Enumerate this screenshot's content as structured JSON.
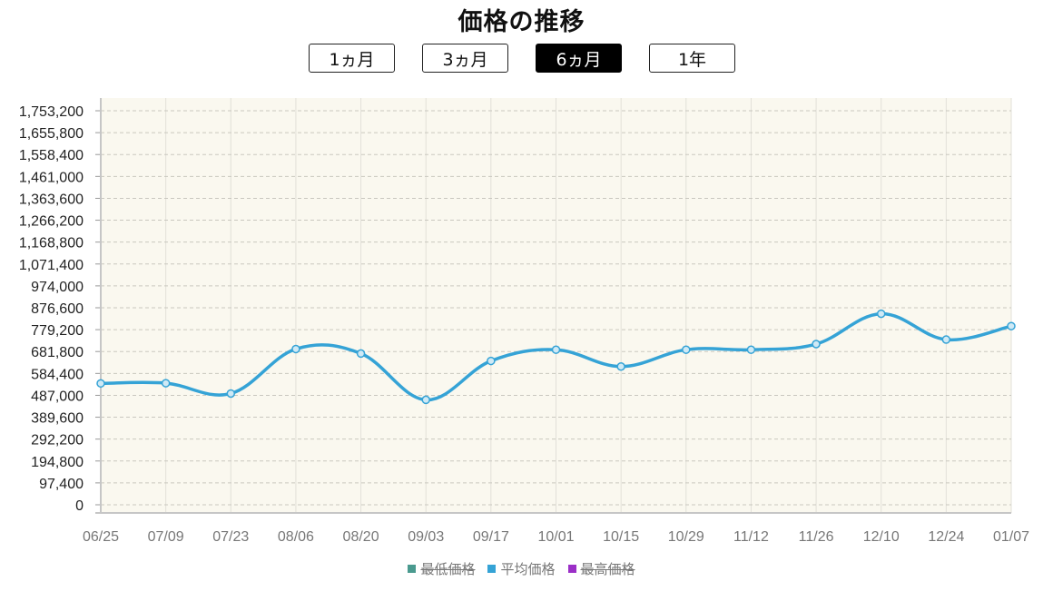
{
  "page": {
    "title": "価格の推移"
  },
  "range_buttons": [
    {
      "label": "1ヵ月",
      "active": false
    },
    {
      "label": "3ヵ月",
      "active": false
    },
    {
      "label": "6ヵ月",
      "active": true
    },
    {
      "label": "1年",
      "active": false
    }
  ],
  "legend": [
    {
      "label": "最低価格",
      "color": "#4a9a8f",
      "hidden": true
    },
    {
      "label": "平均価格",
      "color": "#35a3d6",
      "hidden": false
    },
    {
      "label": "最高価格",
      "color": "#9b2fc7",
      "hidden": true
    }
  ],
  "chart_data": {
    "type": "line",
    "title": "価格の推移",
    "xlabel": "",
    "ylabel": "",
    "grid": true,
    "legend_position": "bottom",
    "background_color": "#faf8ef",
    "categories": [
      "06/25",
      "07/09",
      "07/23",
      "08/06",
      "08/20",
      "09/03",
      "09/17",
      "10/01",
      "10/15",
      "10/29",
      "11/12",
      "11/26",
      "12/10",
      "12/24",
      "01/07"
    ],
    "y_ticks": [
      "0",
      "97,400",
      "194,800",
      "292,200",
      "389,600",
      "487,000",
      "584,400",
      "681,800",
      "779,200",
      "876,600",
      "974,000",
      "1,071,400",
      "1,168,800",
      "1,266,200",
      "1,363,600",
      "1,461,000",
      "1,558,400",
      "1,655,800",
      "1,753,200"
    ],
    "ylim": [
      0,
      1753200
    ],
    "series": [
      {
        "name": "平均価格",
        "color": "#35a3d6",
        "values": [
          540000,
          541000,
          495000,
          693000,
          673000,
          467000,
          640000,
          690000,
          615000,
          690000,
          690000,
          715000,
          850000,
          735000,
          795000
        ]
      }
    ]
  }
}
